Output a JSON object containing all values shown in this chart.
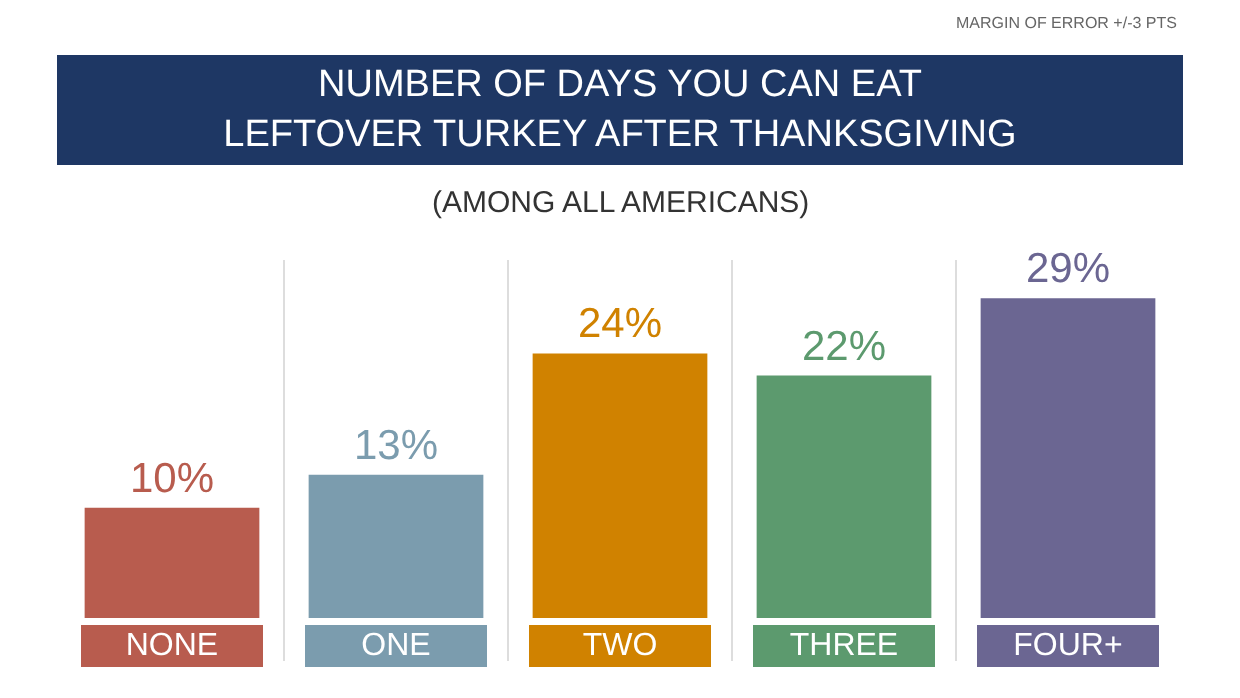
{
  "chart_data": {
    "type": "bar",
    "title": "NUMBER OF DAYS YOU CAN EAT\nLEFTOVER TURKEY AFTER THANKSGIVING",
    "subtitle": "(AMONG ALL AMERICANS)",
    "annotations": [
      "MARGIN OF ERROR +/-3 PTS"
    ],
    "categories": [
      "NONE",
      "ONE",
      "TWO",
      "THREE",
      "FOUR+"
    ],
    "values": [
      10,
      13,
      24,
      22,
      29
    ],
    "value_labels": [
      "10%",
      "13%",
      "24%",
      "22%",
      "29%"
    ],
    "colors": [
      "#b85c4e",
      "#7b9cae",
      "#d08200",
      "#5c9a6e",
      "#6b6692"
    ],
    "legend": false
  }
}
